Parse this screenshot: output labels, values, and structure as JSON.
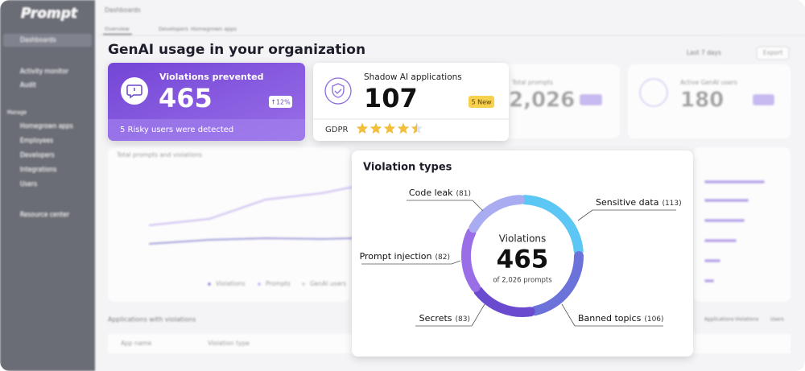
{
  "sidebar": {
    "brand": "Prompt",
    "items": [
      "Dashboards",
      "Activity monitor",
      "Audit"
    ],
    "section": "Manage",
    "manage_items": [
      "Homegrown apps",
      "Employees",
      "Developers",
      "Integrations",
      "Users"
    ],
    "footer_item": "Resource center"
  },
  "header": {
    "breadcrumb": "Dashboards",
    "tabs": [
      "Overview",
      "Developers",
      "Homegrown apps"
    ],
    "title": "GenAI usage in your organization",
    "date_range": "Last 7 days",
    "export": "Export"
  },
  "cards": {
    "violations": {
      "title": "Violations prevented",
      "value": 465,
      "badge": "↑12%",
      "footer": "5 Risky users were detected"
    },
    "shadow_ai": {
      "title": "Shadow AI applications",
      "value": 107,
      "badge": "5 New",
      "footer_label": "GDPR",
      "rating": 4.5
    },
    "total_prompts": {
      "title": "Total prompts",
      "value": "2,026"
    },
    "active_users": {
      "title": "Active GenAI users",
      "value": 180
    }
  },
  "background": {
    "chart_title": "Total prompts and violations",
    "legend": [
      "Violations",
      "Prompts",
      "GenAI users"
    ],
    "table_title": "Applications with violations",
    "table_tabs": [
      "Applications",
      "Violations",
      "Users"
    ],
    "table_columns": [
      "App name",
      "Violation type"
    ]
  },
  "violation_types": {
    "title": "Violation types",
    "center_label": "Violations",
    "center_value": 465,
    "center_caption": "of 2,026 prompts",
    "segments": [
      {
        "name": "Sensitive data",
        "value": 113,
        "value_label": "(113)",
        "color": "#5cc6f4"
      },
      {
        "name": "Banned topics",
        "value": 106,
        "value_label": "(106)",
        "color": "#6b72da"
      },
      {
        "name": "Secrets",
        "value": 83,
        "value_label": "(83)",
        "color": "#6a4bd0"
      },
      {
        "name": "Prompt injection",
        "value": 82,
        "value_label": "(82)",
        "color": "#9a6ee6"
      },
      {
        "name": "Code leak",
        "value": 81,
        "value_label": "(81)",
        "color": "#a9acf0"
      }
    ]
  }
}
